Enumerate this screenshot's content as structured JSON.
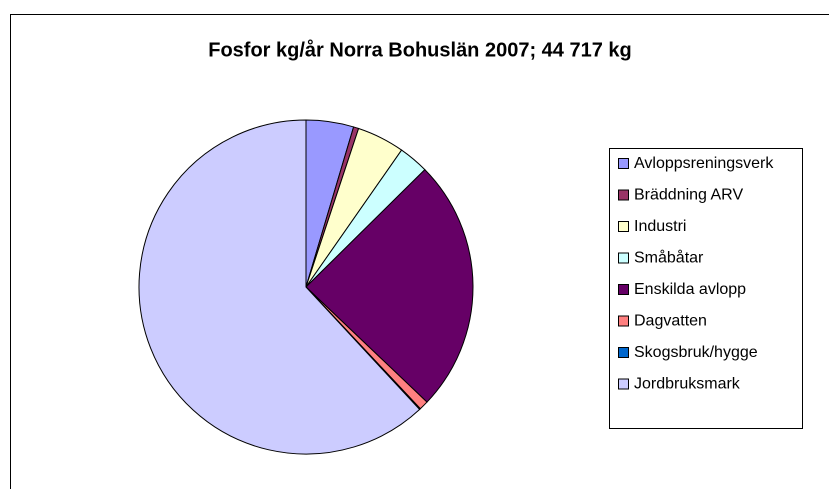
{
  "chart_data": {
    "type": "pie",
    "title": "Fosfor kg/år Norra Bohuslän 2007; 44 717 kg",
    "categories": [
      "Avloppsreningsverk",
      "Bräddning ARV",
      "Industri",
      "Småbåtar",
      "Enskilda avlopp",
      "Dagvatten",
      "Skogsbruk/hygge",
      "Jordbruksmark"
    ],
    "values": [
      4.6,
      0.5,
      4.6,
      2.9,
      24.5,
      0.9,
      0.1,
      61.9
    ],
    "colors": [
      "#9999ff",
      "#993366",
      "#ffffcc",
      "#ccffff",
      "#660066",
      "#ff8080",
      "#0066cc",
      "#ccccff"
    ],
    "legend": "right"
  }
}
